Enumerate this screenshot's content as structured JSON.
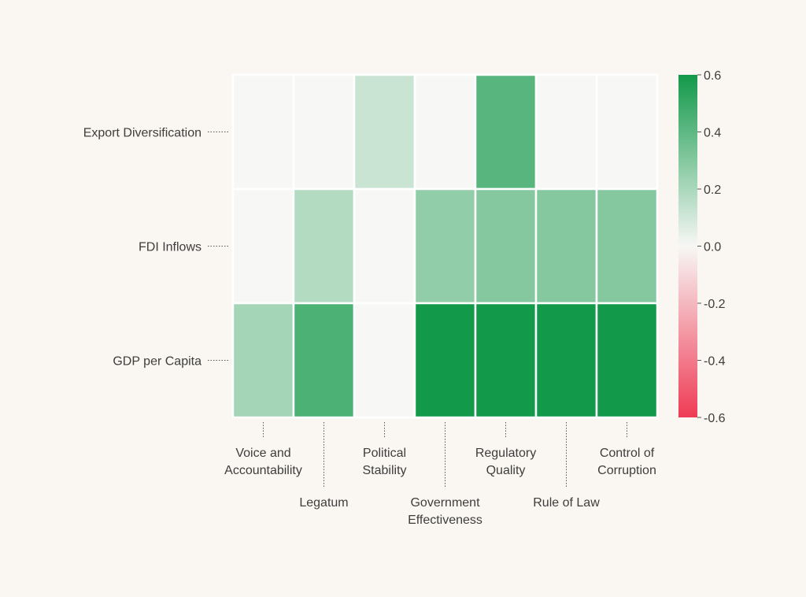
{
  "chart_data": {
    "type": "heatmap",
    "title": "",
    "columns": [
      [
        "Voice and",
        "Accountability"
      ],
      [
        "Legatum"
      ],
      [
        "Political",
        "Stability"
      ],
      [
        "Government",
        "Effectiveness"
      ],
      [
        "Regulatory",
        "Quality"
      ],
      [
        "Rule of Law"
      ],
      [
        "Control of",
        "Corruption"
      ]
    ],
    "rows": [
      "Export Diversification",
      "FDI Inflows",
      "GDP per Capita"
    ],
    "values": [
      [
        0.0,
        0.0,
        0.12,
        0.0,
        0.42,
        0.0,
        0.0
      ],
      [
        0.0,
        0.18,
        0.0,
        0.27,
        0.3,
        0.3,
        0.3
      ],
      [
        0.22,
        0.45,
        0.0,
        0.62,
        0.62,
        0.62,
        0.62
      ]
    ],
    "colorbar": {
      "min": -0.6,
      "max": 0.6,
      "ticks": [
        "0.6",
        "0.4",
        "0.2",
        "0.0",
        "-0.2",
        "-0.4",
        "-0.6"
      ],
      "low_color": "#ef3b55",
      "mid_color": "#f7f7f5",
      "high_color": "#12994a"
    }
  }
}
